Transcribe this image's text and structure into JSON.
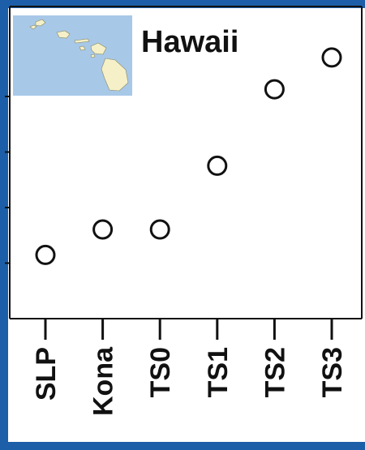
{
  "colors": {
    "frame": "#1c5fa8",
    "panel": "#ffffff",
    "map_sea": "#a8c8e8",
    "map_land": "#f5f0c8",
    "marker_stroke": "#111111"
  },
  "map_inset": {
    "label": "Hawaii",
    "icon": "hawaii-islands-map"
  },
  "chart_data": {
    "type": "scatter",
    "title": "",
    "xlabel": "",
    "ylabel": "",
    "categories": [
      "SLP",
      "Kona",
      "TS0",
      "TS1",
      "TS2",
      "TS3"
    ],
    "values": [
      1.0,
      1.4,
      1.4,
      2.4,
      3.6,
      4.1
    ],
    "ylim": [
      0.0,
      4.9
    ],
    "grid": false,
    "legend": "none",
    "marker": "open-circle"
  }
}
